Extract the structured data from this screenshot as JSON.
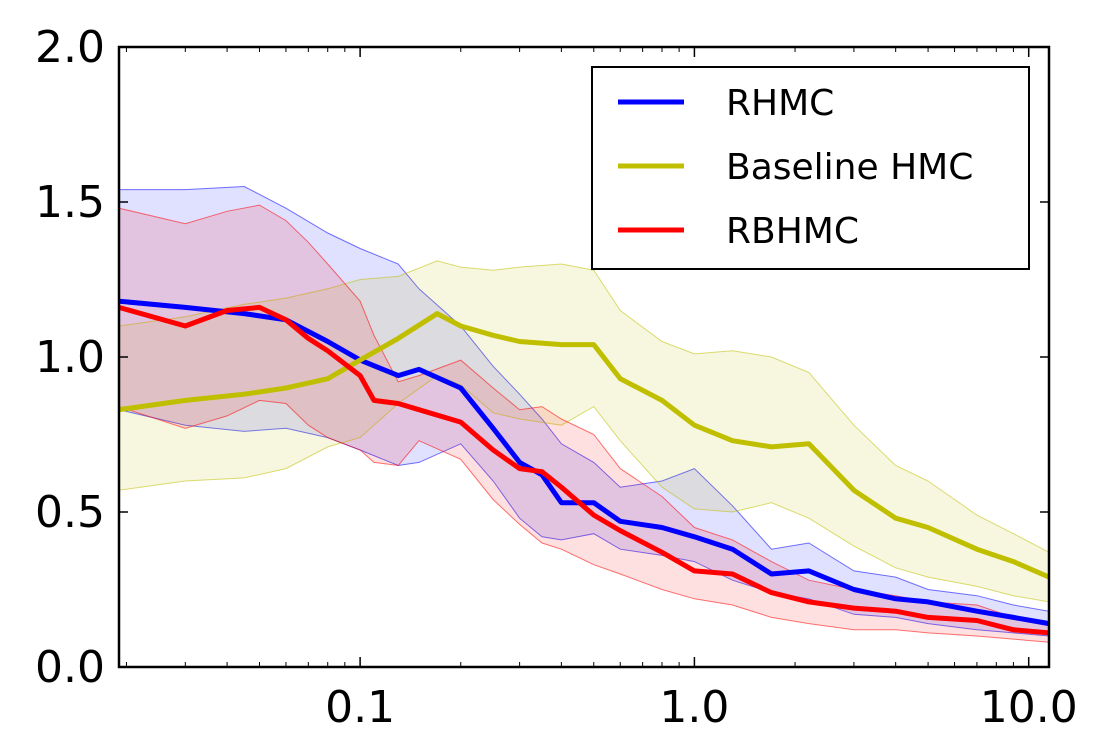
{
  "chart_data": {
    "type": "line",
    "title": "",
    "xlabel": "",
    "ylabel": "",
    "xscale": "log",
    "xlim": [
      0.019,
      11.5
    ],
    "ylim": [
      0.0,
      2.0
    ],
    "xticks": [
      0.1,
      1.0,
      10.0
    ],
    "xtick_labels": [
      "0.1",
      "1.0",
      "10.0"
    ],
    "yticks": [
      0.0,
      0.5,
      1.0,
      1.5,
      2.0
    ],
    "ytick_labels": [
      "0.0",
      "0.5",
      "1.0",
      "1.5",
      "2.0"
    ],
    "legend_position": "top-right",
    "grid": false,
    "series": [
      {
        "name": "RHMC",
        "color": "#0000ff",
        "x": [
          0.019,
          0.03,
          0.045,
          0.06,
          0.08,
          0.1,
          0.13,
          0.15,
          0.2,
          0.25,
          0.3,
          0.35,
          0.4,
          0.5,
          0.6,
          0.8,
          1.0,
          1.3,
          1.7,
          2.2,
          3.0,
          4.0,
          5.0,
          7.0,
          9.0,
          11.5
        ],
        "values": [
          1.18,
          1.16,
          1.14,
          1.12,
          1.05,
          0.99,
          0.94,
          0.96,
          0.9,
          0.77,
          0.66,
          0.62,
          0.53,
          0.53,
          0.47,
          0.45,
          0.42,
          0.38,
          0.3,
          0.31,
          0.25,
          0.22,
          0.21,
          0.18,
          0.16,
          0.14
        ],
        "lower": [
          0.83,
          0.78,
          0.76,
          0.77,
          0.74,
          0.7,
          0.65,
          0.66,
          0.72,
          0.6,
          0.48,
          0.42,
          0.41,
          0.43,
          0.38,
          0.36,
          0.34,
          0.28,
          0.24,
          0.22,
          0.17,
          0.16,
          0.14,
          0.12,
          0.11,
          0.1
        ],
        "upper": [
          1.54,
          1.54,
          1.55,
          1.48,
          1.4,
          1.35,
          1.3,
          1.22,
          1.1,
          0.97,
          0.88,
          0.8,
          0.72,
          0.66,
          0.58,
          0.6,
          0.64,
          0.52,
          0.38,
          0.4,
          0.31,
          0.29,
          0.25,
          0.23,
          0.2,
          0.18
        ]
      },
      {
        "name": "Baseline HMC",
        "color": "#bfbf00",
        "x": [
          0.019,
          0.03,
          0.045,
          0.06,
          0.08,
          0.1,
          0.13,
          0.17,
          0.2,
          0.25,
          0.3,
          0.4,
          0.5,
          0.6,
          0.8,
          1.0,
          1.3,
          1.7,
          2.2,
          3.0,
          4.0,
          5.0,
          7.0,
          9.0,
          11.5
        ],
        "values": [
          0.83,
          0.86,
          0.88,
          0.9,
          0.93,
          0.99,
          1.06,
          1.14,
          1.1,
          1.07,
          1.05,
          1.04,
          1.04,
          0.93,
          0.86,
          0.78,
          0.73,
          0.71,
          0.72,
          0.57,
          0.48,
          0.45,
          0.38,
          0.34,
          0.29
        ],
        "lower": [
          0.57,
          0.6,
          0.61,
          0.64,
          0.71,
          0.74,
          0.85,
          0.94,
          0.91,
          0.82,
          0.8,
          0.78,
          0.84,
          0.73,
          0.58,
          0.51,
          0.5,
          0.53,
          0.48,
          0.39,
          0.32,
          0.29,
          0.26,
          0.23,
          0.21
        ],
        "upper": [
          1.1,
          1.13,
          1.17,
          1.19,
          1.22,
          1.25,
          1.26,
          1.31,
          1.29,
          1.28,
          1.29,
          1.3,
          1.28,
          1.15,
          1.05,
          1.01,
          1.02,
          1.0,
          0.95,
          0.78,
          0.65,
          0.6,
          0.49,
          0.43,
          0.37
        ]
      },
      {
        "name": "RBHMC",
        "color": "#ff0000",
        "x": [
          0.019,
          0.03,
          0.04,
          0.05,
          0.06,
          0.07,
          0.08,
          0.1,
          0.11,
          0.13,
          0.15,
          0.2,
          0.25,
          0.3,
          0.35,
          0.4,
          0.5,
          0.6,
          0.8,
          1.0,
          1.3,
          1.7,
          2.2,
          3.0,
          4.0,
          5.0,
          7.0,
          9.0,
          11.5
        ],
        "values": [
          1.16,
          1.1,
          1.15,
          1.16,
          1.12,
          1.06,
          1.02,
          0.94,
          0.86,
          0.85,
          0.83,
          0.79,
          0.7,
          0.64,
          0.63,
          0.58,
          0.49,
          0.44,
          0.37,
          0.31,
          0.3,
          0.24,
          0.21,
          0.19,
          0.18,
          0.16,
          0.15,
          0.12,
          0.11
        ],
        "lower": [
          0.84,
          0.77,
          0.81,
          0.86,
          0.85,
          0.78,
          0.74,
          0.7,
          0.66,
          0.65,
          0.73,
          0.67,
          0.54,
          0.46,
          0.4,
          0.38,
          0.33,
          0.3,
          0.25,
          0.22,
          0.2,
          0.16,
          0.14,
          0.12,
          0.12,
          0.11,
          0.1,
          0.09,
          0.08
        ],
        "upper": [
          1.48,
          1.43,
          1.47,
          1.49,
          1.44,
          1.37,
          1.3,
          1.18,
          1.07,
          0.92,
          0.94,
          0.99,
          0.9,
          0.83,
          0.84,
          0.8,
          0.75,
          0.64,
          0.55,
          0.45,
          0.41,
          0.34,
          0.28,
          0.25,
          0.23,
          0.21,
          0.2,
          0.16,
          0.14
        ]
      }
    ]
  }
}
